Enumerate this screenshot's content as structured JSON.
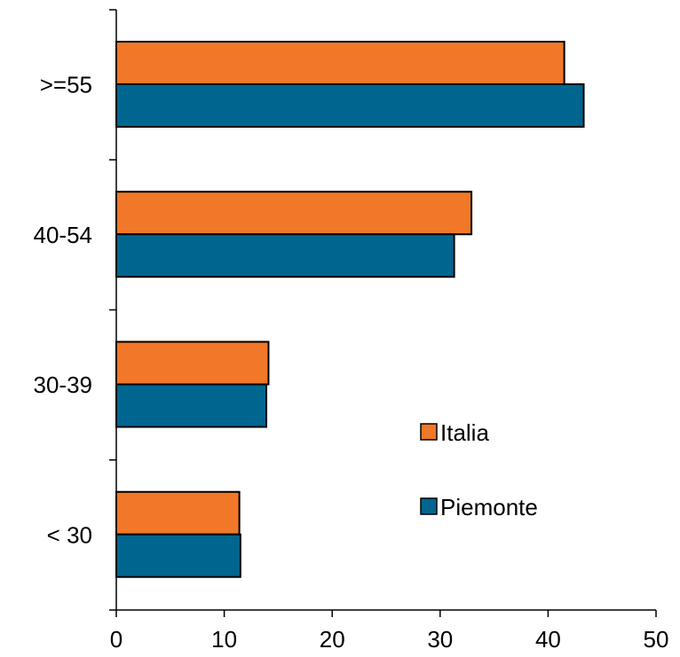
{
  "chart_data": {
    "type": "bar",
    "orientation": "horizontal",
    "categories": [
      "< 30",
      "30-39",
      "40-54",
      ">=55"
    ],
    "series": [
      {
        "name": "Piemonte",
        "color": "#006690",
        "values": [
          11.5,
          13.9,
          31.3,
          43.3
        ]
      },
      {
        "name": "Italia",
        "color": "#F07828",
        "values": [
          11.4,
          14.1,
          32.9,
          41.5
        ]
      }
    ],
    "xlim": [
      0,
      50
    ],
    "xticks": [
      0,
      10,
      20,
      30,
      40,
      50
    ],
    "title": "",
    "xlabel": "",
    "ylabel": "",
    "grid": false,
    "legend_position": "right"
  }
}
